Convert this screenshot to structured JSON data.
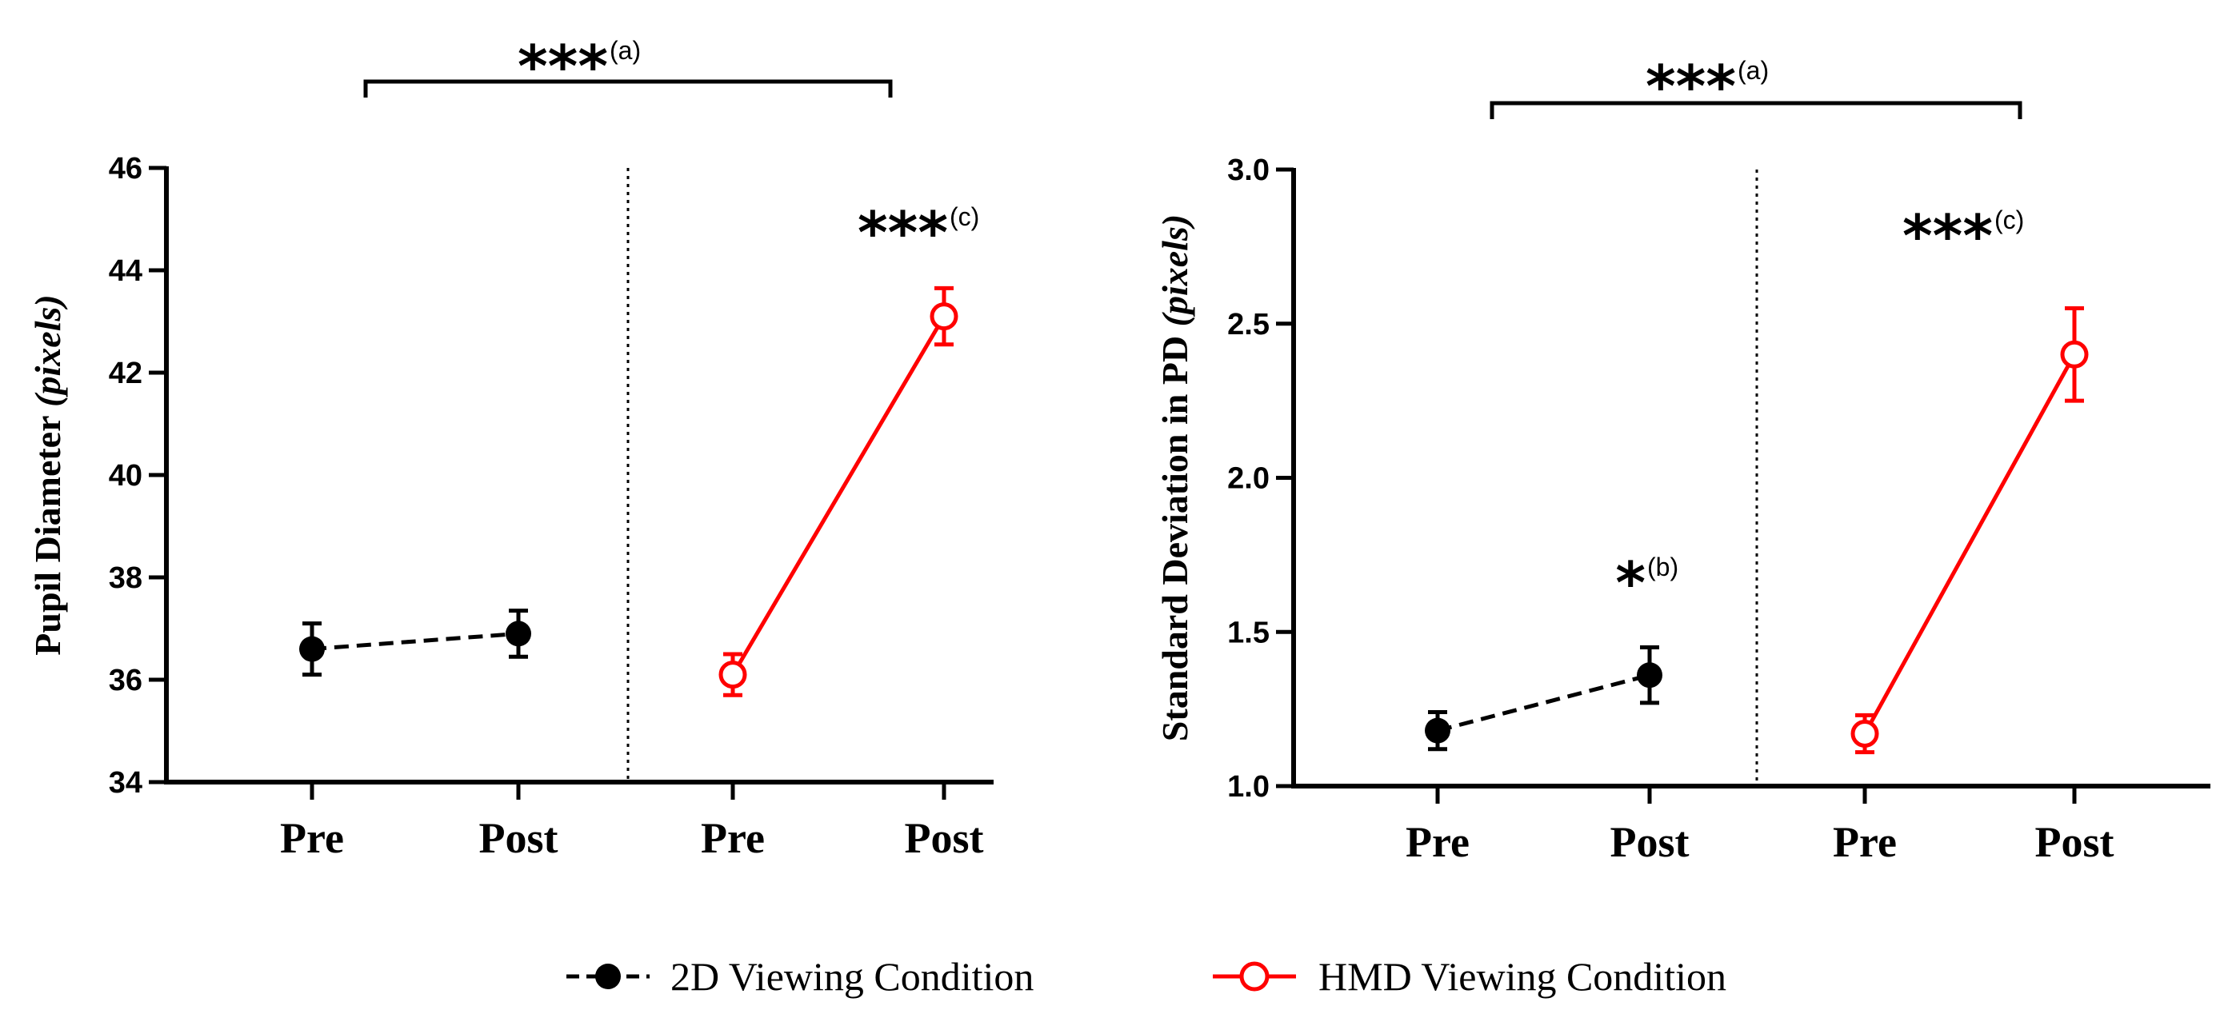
{
  "chart_data": [
    {
      "type": "line",
      "ylabel_main": "Pupil Diameter ",
      "ylabel_italic": "(pixels)",
      "ylim": [
        34,
        46
      ],
      "yticks": [
        "34",
        "36",
        "38",
        "40",
        "42",
        "44",
        "46"
      ],
      "categories": [
        "Pre",
        "Post",
        "Pre",
        "Post"
      ],
      "series": [
        {
          "name": "2D Viewing Condition",
          "color": "#000000",
          "x": [
            "Pre",
            "Post"
          ],
          "values": [
            36.6,
            36.9
          ],
          "err": [
            0.5,
            0.45
          ]
        },
        {
          "name": "HMD Viewing Condition",
          "color": "#ff0000",
          "x": [
            "Pre",
            "Post"
          ],
          "values": [
            36.1,
            43.1
          ],
          "err": [
            0.4,
            0.55
          ]
        }
      ],
      "annotations": [
        {
          "id": "a",
          "stars": "***",
          "sup": "(a)"
        },
        {
          "id": "c",
          "stars": "***",
          "sup": "(c)"
        }
      ]
    },
    {
      "type": "line",
      "ylabel_main": "Standard Deviation in PD ",
      "ylabel_italic": "(pixels)",
      "ylim": [
        1.0,
        3.0
      ],
      "yticks": [
        "1.0",
        "1.5",
        "2.0",
        "2.5",
        "3.0"
      ],
      "categories": [
        "Pre",
        "Post",
        "Pre",
        "Post"
      ],
      "series": [
        {
          "name": "2D Viewing Condition",
          "color": "#000000",
          "x": [
            "Pre",
            "Post"
          ],
          "values": [
            1.18,
            1.36
          ],
          "err": [
            0.06,
            0.09
          ]
        },
        {
          "name": "HMD Viewing Condition",
          "color": "#ff0000",
          "x": [
            "Pre",
            "Post"
          ],
          "values": [
            1.17,
            2.4
          ],
          "err": [
            0.06,
            0.15
          ]
        }
      ],
      "annotations": [
        {
          "id": "a",
          "stars": "***",
          "sup": "(a)"
        },
        {
          "id": "b",
          "stars": "*",
          "sup": "(b)"
        },
        {
          "id": "c",
          "stars": "***",
          "sup": "(c)"
        }
      ]
    }
  ],
  "legend": [
    {
      "label": "2D Viewing Condition",
      "color": "#000000"
    },
    {
      "label": "HMD Viewing Condition",
      "color": "#ff0000"
    }
  ]
}
